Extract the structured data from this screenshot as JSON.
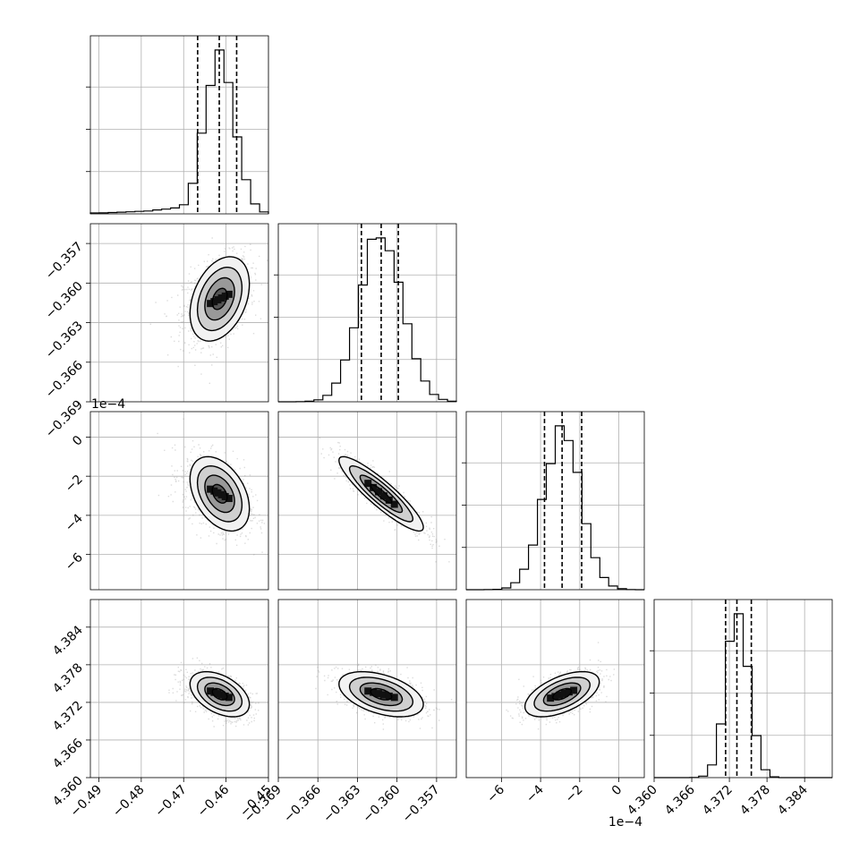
{
  "chart_data": {
    "type": "corner",
    "n_params": 4,
    "params": [
      {
        "center": -0.4615,
        "sigma": 0.0035,
        "range": [
          -0.492,
          -0.45
        ],
        "quantiles": [
          -0.4667,
          -0.4616,
          -0.4575
        ],
        "tick_values": [
          -0.49,
          -0.48,
          -0.47,
          -0.46,
          -0.45
        ],
        "tick_labels": [
          "−0.49",
          "−0.48",
          "−0.47",
          "−0.46",
          "−0.45"
        ],
        "offset_label": ""
      },
      {
        "center": -0.3612,
        "sigma": 0.0016,
        "range": [
          -0.369,
          -0.3555
        ],
        "quantiles": [
          -0.3627,
          -0.3612,
          -0.3599
        ],
        "tick_values": [
          -0.369,
          -0.366,
          -0.363,
          -0.36,
          -0.357
        ],
        "tick_labels": [
          "−0.369",
          "−0.366",
          "−0.363",
          "−0.360",
          "−0.357"
        ],
        "offset_label": ""
      },
      {
        "center": -2.9,
        "sigma": 0.95,
        "range": [
          -7.8,
          1.3
        ],
        "quantiles": [
          -3.8,
          -2.9,
          -1.9
        ],
        "tick_values": [
          -6,
          -4,
          -2,
          0
        ],
        "tick_labels": [
          "−6",
          "−4",
          "−2",
          "0"
        ],
        "offset_label": "1e−4"
      },
      {
        "center": 4.3733,
        "sigma": 0.0018,
        "range": [
          4.36,
          4.3884
        ],
        "quantiles": [
          4.3714,
          4.3732,
          4.3755
        ],
        "tick_values": [
          4.36,
          4.366,
          4.372,
          4.378,
          4.384
        ],
        "tick_labels": [
          "4.360",
          "4.366",
          "4.372",
          "4.378",
          "4.384"
        ],
        "offset_label": ""
      }
    ],
    "correlations": [
      {
        "row": 1,
        "col": 0,
        "rho": 0.35
      },
      {
        "row": 2,
        "col": 0,
        "rho": -0.4
      },
      {
        "row": 2,
        "col": 1,
        "rho": -0.9
      },
      {
        "row": 3,
        "col": 0,
        "rho": -0.45
      },
      {
        "row": 3,
        "col": 1,
        "rho": -0.45
      },
      {
        "row": 3,
        "col": 2,
        "rho": 0.55
      }
    ],
    "contour_levels_sigma": [
      0.5,
      1.0,
      1.5,
      2.0
    ],
    "grid": true,
    "colors": {
      "scatter": "#808080",
      "line": "#000000",
      "grid": "#b0b0b0"
    }
  }
}
